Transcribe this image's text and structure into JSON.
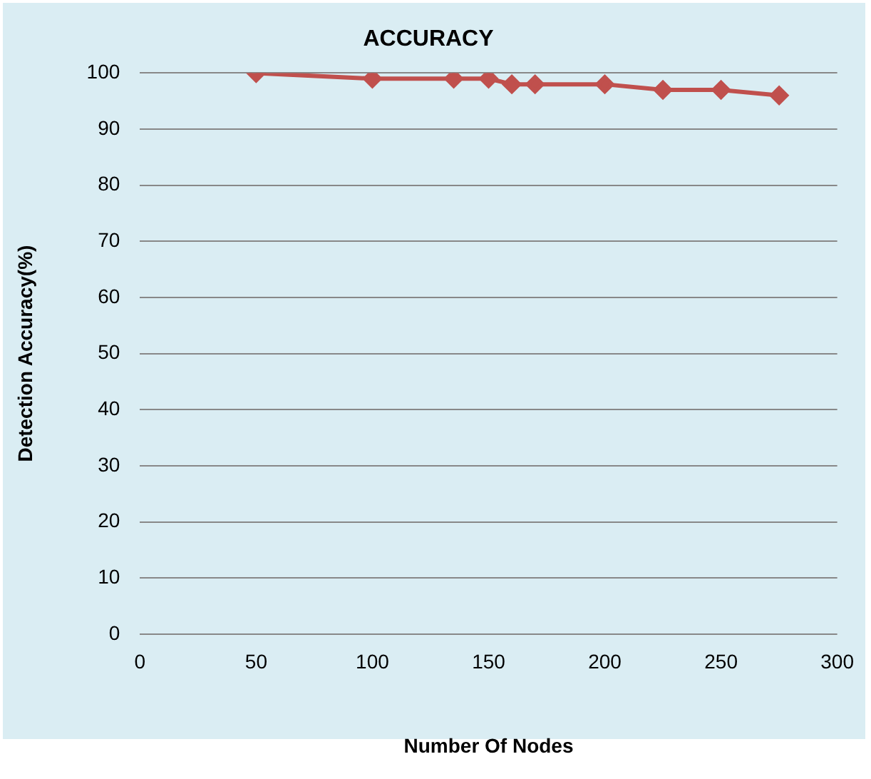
{
  "chart_data": {
    "type": "line",
    "title": "ACCURACY",
    "xlabel": "Number Of Nodes",
    "ylabel": "Detection Accuracy(%)",
    "x": [
      50,
      100,
      135,
      150,
      160,
      170,
      200,
      225,
      250,
      275
    ],
    "series": [
      {
        "color": "#c0504d",
        "values": [
          100,
          99,
          99,
          99,
          98,
          98,
          98,
          97,
          97,
          96
        ]
      }
    ],
    "xlim": [
      0,
      300
    ],
    "xticks": [
      0,
      50,
      100,
      150,
      200,
      250,
      300
    ],
    "ylim": [
      0,
      100
    ],
    "yticks": [
      0,
      10,
      20,
      30,
      40,
      50,
      60,
      70,
      80,
      90,
      100
    ],
    "grid": "y",
    "legend": false,
    "marker": "diamond",
    "line_style": "solid"
  }
}
